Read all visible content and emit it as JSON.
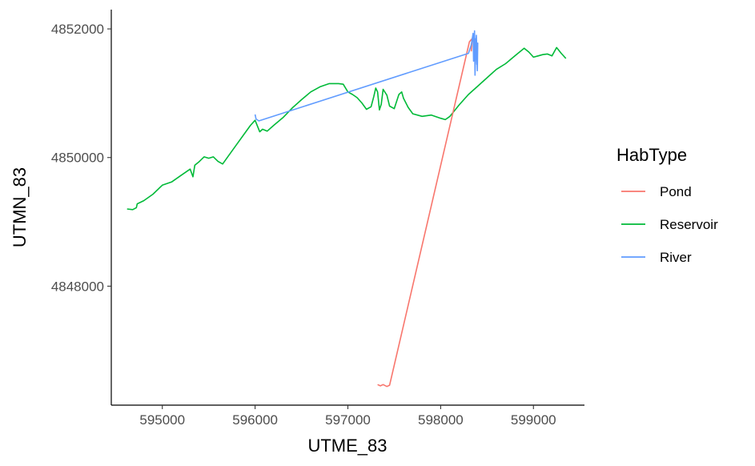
{
  "chart_data": {
    "type": "line",
    "title": "",
    "xlabel": "UTME_83",
    "ylabel": "UTMN_83",
    "xlim": [
      594450,
      599550
    ],
    "ylim": [
      4846150,
      4852300
    ],
    "xticks": [
      595000,
      596000,
      597000,
      598000,
      599000
    ],
    "yticks": [
      4848000,
      4850000,
      4852000
    ],
    "xtick_labels": [
      "595000",
      "596000",
      "597000",
      "598000",
      "599000"
    ],
    "ytick_labels": [
      "4848000",
      "4850000",
      "4852000"
    ],
    "grid": false,
    "legend": {
      "title": "HabType",
      "placement": "right"
    },
    "series": [
      {
        "name": "Pond",
        "color": "#F8766D",
        "x": [
          597320,
          597350,
          597380,
          597420,
          597450,
          598310,
          598340,
          598330
        ],
        "y": [
          4846470,
          4846450,
          4846470,
          4846440,
          4846460,
          4851800,
          4851850,
          4851650
        ]
      },
      {
        "name": "Reservoir",
        "color": "#00BA38",
        "x": [
          594620,
          594680,
          594720,
          594730,
          594800,
          594900,
          595000,
          595100,
          595200,
          595300,
          595330,
          595350,
          595400,
          595450,
          595500,
          595550,
          595600,
          595650,
          595700,
          595800,
          595900,
          595950,
          596000,
          596050,
          596080,
          596130,
          596200,
          596300,
          596400,
          596500,
          596600,
          596700,
          596800,
          596900,
          596950,
          597000,
          597050,
          597100,
          597150,
          597200,
          597250,
          597280,
          597300,
          597320,
          597340,
          597360,
          597380,
          597420,
          597450,
          597500,
          597550,
          597580,
          597600,
          597650,
          597700,
          597800,
          597900,
          598000,
          598050,
          598100,
          598200,
          598300,
          598400,
          598500,
          598600,
          598700,
          598800,
          598900,
          598950,
          599000,
          599050,
          599100,
          599150,
          599200,
          599250,
          599300,
          599350
        ],
        "y": [
          4849200,
          4849190,
          4849220,
          4849280,
          4849330,
          4849430,
          4849570,
          4849620,
          4849720,
          4849820,
          4849700,
          4849880,
          4849940,
          4850010,
          4849990,
          4850010,
          4849940,
          4849900,
          4850000,
          4850200,
          4850400,
          4850500,
          4850580,
          4850400,
          4850440,
          4850410,
          4850500,
          4850620,
          4850770,
          4850900,
          4851020,
          4851100,
          4851150,
          4851150,
          4851140,
          4851020,
          4850980,
          4850930,
          4850850,
          4850750,
          4850790,
          4850950,
          4851080,
          4851020,
          4850740,
          4850830,
          4851060,
          4850970,
          4850800,
          4850760,
          4850980,
          4851020,
          4850920,
          4850780,
          4850680,
          4850640,
          4850660,
          4850610,
          4850590,
          4850640,
          4850820,
          4850980,
          4851110,
          4851240,
          4851370,
          4851460,
          4851580,
          4851700,
          4851640,
          4851560,
          4851580,
          4851600,
          4851610,
          4851580,
          4851710,
          4851620,
          4851540
        ]
      },
      {
        "name": "River",
        "color": "#619CFF",
        "x": [
          596000,
          596010,
          596040,
          598300,
          598330,
          598350,
          598355,
          598365,
          598370,
          598380,
          598390,
          598400,
          598395,
          598385,
          598375,
          598360
        ],
        "y": [
          4850670,
          4850600,
          4850570,
          4851620,
          4851750,
          4851930,
          4851500,
          4851970,
          4851280,
          4851850,
          4851450,
          4851780,
          4851350,
          4851900,
          4851600,
          4851700
        ]
      }
    ]
  }
}
